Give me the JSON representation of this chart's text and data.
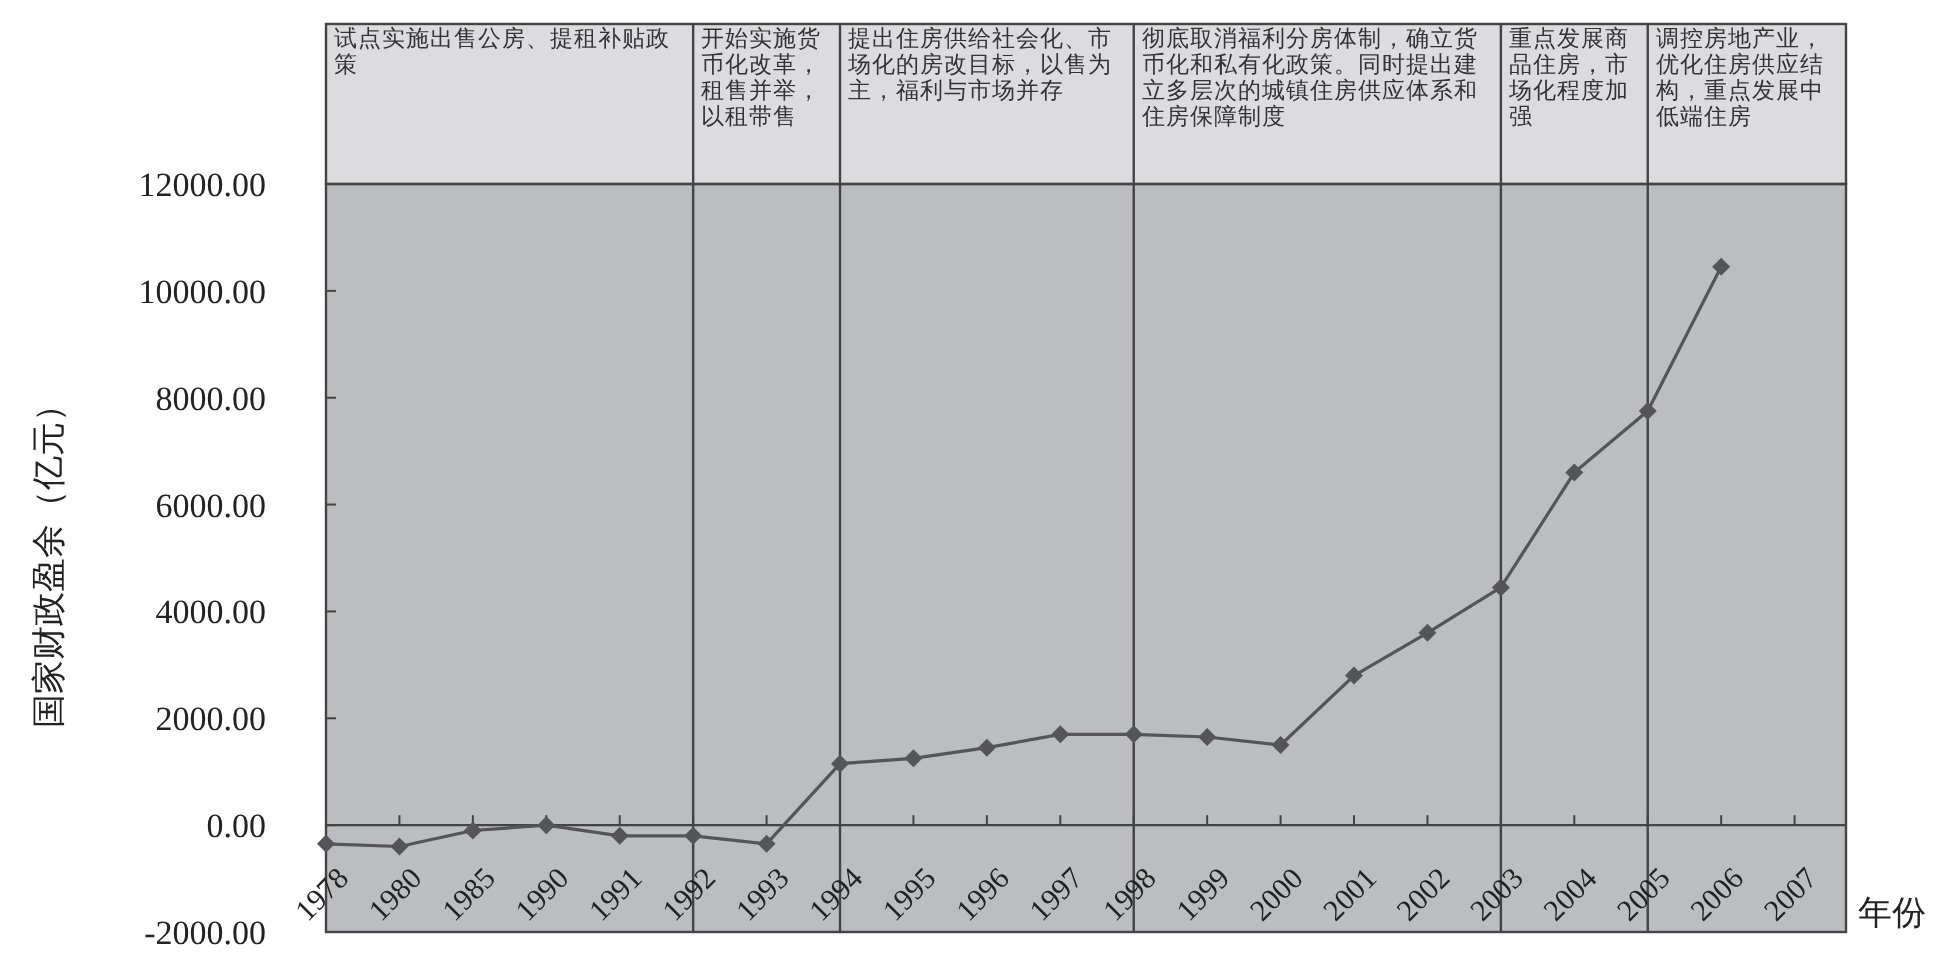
{
  "chart_data": {
    "type": "line",
    "xlabel": "年份",
    "ylabel": "国家财政盈余（亿元）",
    "categories": [
      "1978",
      "1980",
      "1985",
      "1990",
      "1991",
      "1992",
      "1993",
      "1994",
      "1995",
      "1996",
      "1997",
      "1998",
      "1999",
      "2000",
      "2001",
      "2002",
      "2003",
      "2004",
      "2005",
      "2006",
      "2007"
    ],
    "series": [
      {
        "color": "#555559",
        "values": [
          -350,
          -400,
          -100,
          0,
          -200,
          -200,
          -350,
          1150,
          1250,
          1450,
          1700,
          1700,
          1650,
          1500,
          2800,
          3600,
          4450,
          6600,
          7750,
          10450,
          null
        ]
      }
    ],
    "ylim": [
      -2000,
      12000
    ],
    "yticks": [
      {
        "value": -2000,
        "label": "-2000.00"
      },
      {
        "value": 0,
        "label": "0.00"
      },
      {
        "value": 2000,
        "label": "2000.00"
      },
      {
        "value": 4000,
        "label": "4000.00"
      },
      {
        "value": 6000,
        "label": "6000.00"
      },
      {
        "value": 8000,
        "label": "8000.00"
      },
      {
        "value": 10000,
        "label": "10000.00"
      },
      {
        "value": 12000,
        "label": "12000.00"
      }
    ],
    "ref_lines": [
      {
        "axis": "x",
        "value": "1992",
        "color": "#444444"
      },
      {
        "axis": "x",
        "value": "1994",
        "color": "#444444"
      },
      {
        "axis": "x",
        "value": "1998",
        "color": "#444444"
      },
      {
        "axis": "x",
        "value": "2003",
        "color": "#444444"
      },
      {
        "axis": "x",
        "value": "2005",
        "color": "#444444"
      }
    ],
    "annotations": [
      "试点实施出售公房、提租补贴政策",
      "开始实施货币化改革，租售并举，以租带售",
      "提出住房供给社会化、市场化的房改目标，以售为主，福利与市场并存",
      "彻底取消福利分房体制，确立货币化和私有化政策。同时提出建立多层次的城镇住房供应体系和住房保障制度",
      "重点发展商品住房，市场化程度加强",
      "调控房地产业，优化住房供应结构，重点发展中低端住房"
    ],
    "marker": "diamond",
    "line_style": "solid"
  }
}
